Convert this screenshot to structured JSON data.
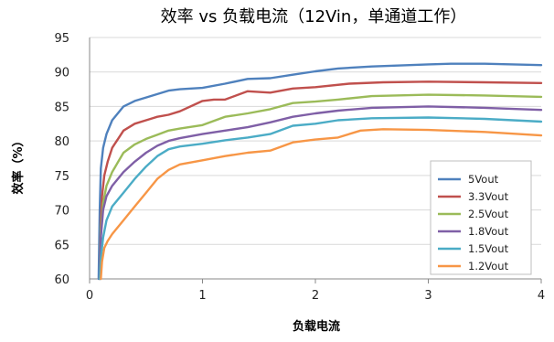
{
  "chart_data": {
    "type": "line",
    "title": "效率 vs 负载电流（12Vin，单通道工作）",
    "xlabel": "负载电流",
    "ylabel": "效率（%）",
    "xlim": [
      0,
      4
    ],
    "ylim": [
      60,
      95
    ],
    "xticks": [
      0,
      1,
      2,
      3,
      4
    ],
    "yticks": [
      60,
      65,
      70,
      75,
      80,
      85,
      90,
      95
    ],
    "grid": "horizontal",
    "legend_position": "bottom-right",
    "series": [
      {
        "name": "5Vout",
        "color": "#4f81bd",
        "x": [
          0.08,
          0.09,
          0.1,
          0.12,
          0.15,
          0.2,
          0.3,
          0.4,
          0.5,
          0.6,
          0.7,
          0.8,
          0.9,
          1.0,
          1.2,
          1.4,
          1.6,
          1.8,
          2.0,
          2.2,
          2.5,
          3.0,
          3.2,
          3.5,
          4.0
        ],
        "y": [
          60,
          70,
          76,
          79,
          81,
          83,
          85,
          85.8,
          86.3,
          86.8,
          87.3,
          87.5,
          87.6,
          87.7,
          88.3,
          89.0,
          89.1,
          89.6,
          90.1,
          90.5,
          90.8,
          91.1,
          91.2,
          91.2,
          91.0
        ]
      },
      {
        "name": "3.3Vout",
        "color": "#c0504d",
        "x": [
          0.09,
          0.1,
          0.11,
          0.13,
          0.16,
          0.2,
          0.3,
          0.4,
          0.5,
          0.6,
          0.7,
          0.8,
          1.0,
          1.1,
          1.2,
          1.4,
          1.6,
          1.8,
          2.0,
          2.3,
          2.6,
          3.0,
          3.5,
          4.0
        ],
        "y": [
          60,
          68,
          72,
          75,
          77,
          79,
          81.5,
          82.5,
          83,
          83.5,
          83.8,
          84.3,
          85.8,
          86,
          86,
          87.2,
          87,
          87.6,
          87.8,
          88.3,
          88.5,
          88.6,
          88.5,
          88.4
        ]
      },
      {
        "name": "2.5Vout",
        "color": "#9bbb59",
        "x": [
          0.09,
          0.1,
          0.12,
          0.15,
          0.2,
          0.3,
          0.4,
          0.5,
          0.6,
          0.7,
          0.8,
          1.0,
          1.2,
          1.4,
          1.6,
          1.8,
          2.0,
          2.2,
          2.5,
          3.0,
          3.5,
          4.0
        ],
        "y": [
          60,
          67,
          71,
          73.5,
          75.5,
          78.3,
          79.5,
          80.3,
          80.9,
          81.5,
          81.8,
          82.3,
          83.5,
          84.0,
          84.6,
          85.5,
          85.7,
          86.0,
          86.5,
          86.7,
          86.6,
          86.4
        ]
      },
      {
        "name": "1.8Vout",
        "color": "#7f5fa6",
        "x": [
          0.09,
          0.1,
          0.12,
          0.15,
          0.2,
          0.3,
          0.4,
          0.5,
          0.6,
          0.7,
          0.8,
          1.0,
          1.2,
          1.4,
          1.6,
          1.8,
          2.0,
          2.2,
          2.5,
          3.0,
          3.5,
          4.0
        ],
        "y": [
          60,
          66,
          70,
          72,
          73.5,
          75.5,
          77,
          78.3,
          79.3,
          80.0,
          80.4,
          81.0,
          81.5,
          82.0,
          82.7,
          83.5,
          84.0,
          84.4,
          84.8,
          85.0,
          84.8,
          84.5
        ]
      },
      {
        "name": "1.5Vout",
        "color": "#4bacc6",
        "x": [
          0.09,
          0.1,
          0.12,
          0.15,
          0.2,
          0.3,
          0.4,
          0.5,
          0.6,
          0.7,
          0.8,
          1.0,
          1.2,
          1.4,
          1.6,
          1.8,
          2.0,
          2.2,
          2.5,
          3.0,
          3.5,
          4.0
        ],
        "y": [
          60,
          63,
          66,
          68.5,
          70.5,
          72.5,
          74.5,
          76.3,
          77.8,
          78.8,
          79.2,
          79.6,
          80.1,
          80.5,
          81.0,
          82.2,
          82.5,
          83.0,
          83.3,
          83.4,
          83.2,
          82.8
        ]
      },
      {
        "name": "1.2Vout",
        "color": "#f79646",
        "x": [
          0.1,
          0.11,
          0.13,
          0.16,
          0.2,
          0.3,
          0.4,
          0.5,
          0.6,
          0.7,
          0.8,
          1.0,
          1.2,
          1.4,
          1.6,
          1.8,
          2.0,
          2.2,
          2.4,
          2.6,
          3.0,
          3.5,
          4.0
        ],
        "y": [
          60,
          62.5,
          64.5,
          65.5,
          66.5,
          68.5,
          70.5,
          72.5,
          74.5,
          75.8,
          76.6,
          77.2,
          77.8,
          78.3,
          78.6,
          79.8,
          80.2,
          80.5,
          81.5,
          81.7,
          81.6,
          81.3,
          80.8
        ]
      }
    ]
  }
}
